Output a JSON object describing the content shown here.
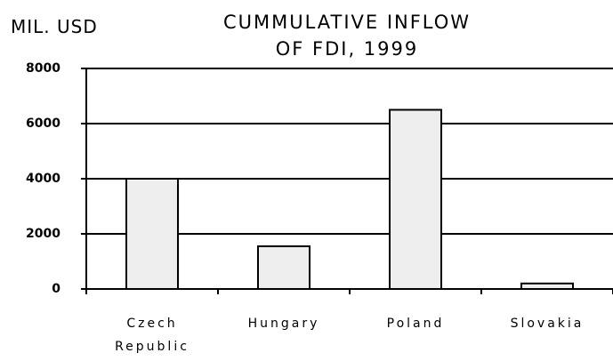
{
  "chart_data": {
    "type": "bar",
    "title": "CUMMULATIVE INFLOW\nOF FDI, 1999",
    "y_label": "MIL. USD",
    "categories": [
      "Czech Republic",
      "Hungary",
      "Poland",
      "Slovakia"
    ],
    "values": [
      4000,
      1550,
      6500,
      200
    ],
    "color": "#eeeeee",
    "ylim": [
      0,
      8000
    ],
    "yticks": [
      0,
      2000,
      4000,
      6000,
      8000
    ],
    "grid": true
  }
}
